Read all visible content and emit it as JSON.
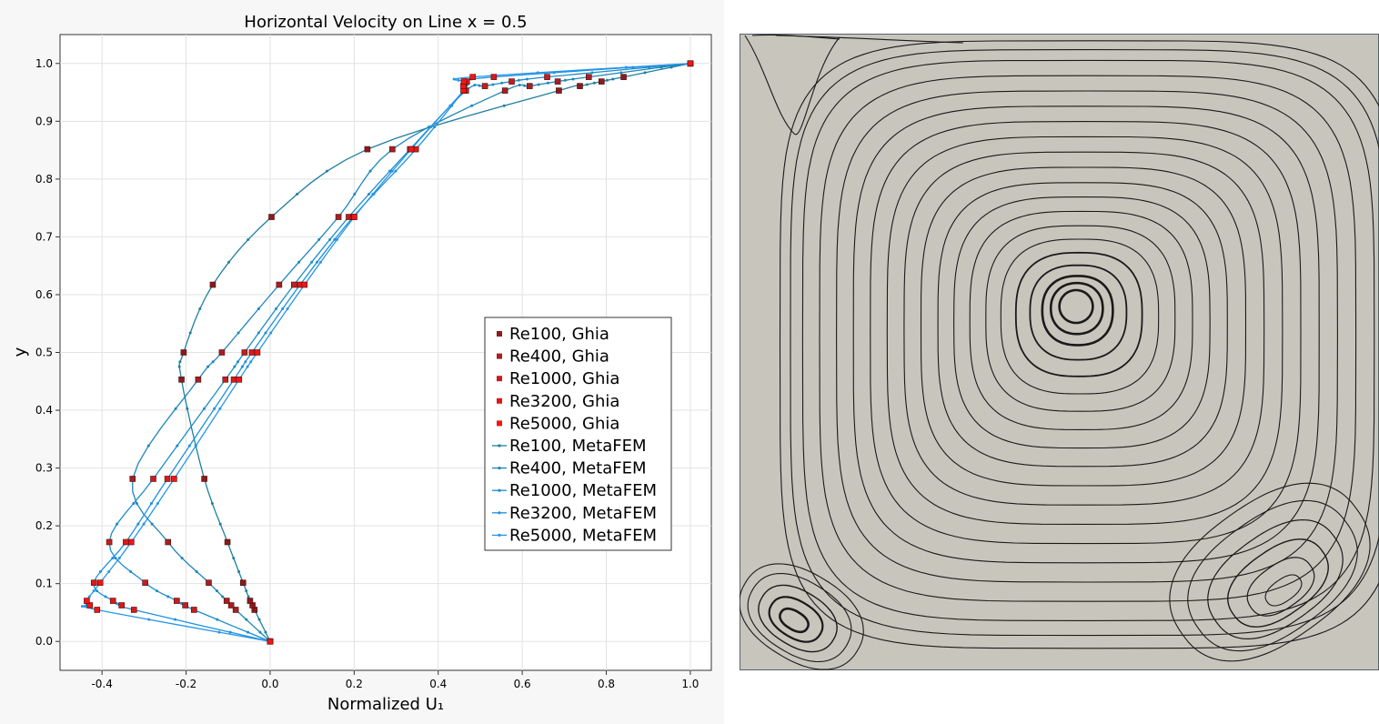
{
  "chart_data": [
    {
      "type": "line",
      "title": "Horizontal Velocity on Line x = 0.5",
      "xlabel": "Normalized U₁",
      "ylabel": "y",
      "xlim": [
        -0.5,
        1.05
      ],
      "ylim": [
        -0.05,
        1.05
      ],
      "xticks": [
        -0.4,
        -0.2,
        0.0,
        0.2,
        0.4,
        0.6,
        0.8,
        1.0
      ],
      "xtick_labels": [
        "-0.4",
        "-0.2",
        "0.0",
        "0.2",
        "0.4",
        "0.6",
        "0.8",
        "1.0"
      ],
      "yticks": [
        0.0,
        0.1,
        0.2,
        0.3,
        0.4,
        0.5,
        0.6,
        0.7,
        0.8,
        0.9,
        1.0
      ],
      "ytick_labels": [
        "0.0",
        "0.1",
        "0.2",
        "0.3",
        "0.4",
        "0.5",
        "0.6",
        "0.7",
        "0.8",
        "0.9",
        "1.0"
      ],
      "grid": true,
      "legend_position": "right-center",
      "y_points": [
        0.0,
        0.0547,
        0.0625,
        0.0703,
        0.1016,
        0.1719,
        0.2813,
        0.4531,
        0.5,
        0.6172,
        0.7344,
        0.8516,
        0.9531,
        0.9609,
        0.9688,
        0.9766,
        1.0
      ],
      "markers": [
        {
          "name": "Re100, Ghia",
          "color": "#8b1a1a",
          "u": [
            0.0,
            -0.0372,
            -0.0419,
            -0.0477,
            -0.0643,
            -0.1015,
            -0.1566,
            -0.2109,
            -0.2058,
            -0.1364,
            0.0033,
            0.2315,
            0.6872,
            0.7372,
            0.7887,
            0.8412,
            1.0
          ]
        },
        {
          "name": "Re400, Ghia",
          "color": "#a52020",
          "u": [
            0.0,
            -0.0819,
            -0.0927,
            -0.1034,
            -0.1461,
            -0.243,
            -0.3273,
            -0.1712,
            -0.1148,
            0.0214,
            0.1626,
            0.2909,
            0.5589,
            0.6176,
            0.6844,
            0.7584,
            1.0
          ]
        },
        {
          "name": "Re1000, Ghia",
          "color": "#c41e1e",
          "u": [
            0.0,
            -0.1811,
            -0.202,
            -0.2222,
            -0.2973,
            -0.3829,
            -0.2781,
            -0.1065,
            -0.0608,
            0.057,
            0.1872,
            0.333,
            0.466,
            0.5112,
            0.5749,
            0.6593,
            1.0
          ]
        },
        {
          "name": "Re3200, Ghia",
          "color": "#dd1818",
          "u": [
            0.0,
            -0.3241,
            -0.3534,
            -0.374,
            -0.4194,
            -0.3433,
            -0.2443,
            -0.0864,
            -0.0433,
            0.0714,
            0.1974,
            0.3468,
            0.4604,
            0.4612,
            0.4683,
            0.5324,
            1.0
          ]
        },
        {
          "name": "Re5000, Ghia",
          "color": "#f21515",
          "u": [
            0.0,
            -0.4117,
            -0.429,
            -0.4364,
            -0.4043,
            -0.3305,
            -0.2286,
            -0.074,
            -0.0304,
            0.0818,
            0.2003,
            0.3356,
            0.4604,
            0.4599,
            0.4612,
            0.4822,
            1.0
          ]
        }
      ],
      "lines": [
        {
          "name": "Re100, MetaFEM",
          "color": "#1f7f9f"
        },
        {
          "name": "Re400, MetaFEM",
          "color": "#1d86b8"
        },
        {
          "name": "Re1000, MetaFEM",
          "color": "#1b8dca"
        },
        {
          "name": "Re3200, MetaFEM",
          "color": "#1e90de"
        },
        {
          "name": "Re5000, MetaFEM",
          "color": "#2596ea"
        }
      ]
    },
    {
      "type": "streamline",
      "background_color": "#c8c5bd",
      "line_color": "#1a1a1a",
      "domain": [
        0,
        1
      ]
    }
  ]
}
